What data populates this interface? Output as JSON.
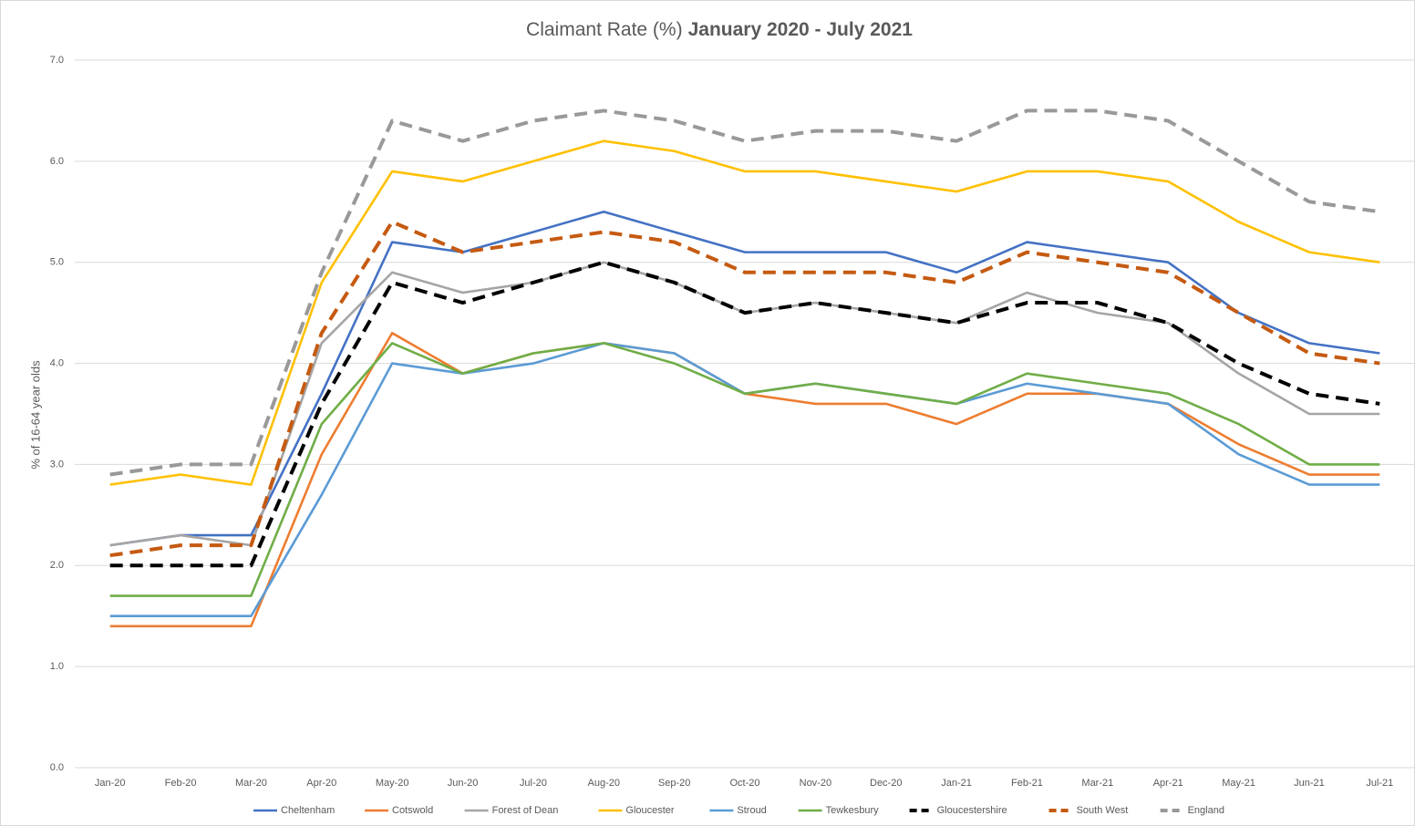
{
  "chart_data": {
    "type": "line",
    "title": [
      "Claimant Rate (%)",
      "January 2020 - July 2021"
    ],
    "y_label": "% of 16-64 year olds",
    "categories": [
      "Jan-20",
      "Feb-20",
      "Mar-20",
      "Apr-20",
      "May-20",
      "Jun-20",
      "Jul-20",
      "Aug-20",
      "Sep-20",
      "Oct-20",
      "Nov-20",
      "Dec-20",
      "Jan-21",
      "Feb-21",
      "Mar-21",
      "Apr-21",
      "May-21",
      "Jun-21",
      "Jul-21"
    ],
    "ylim": [
      0,
      7
    ],
    "yticks": [
      {
        "value": 0,
        "label": "0.0"
      },
      {
        "value": 1,
        "label": "1.0"
      },
      {
        "value": 2,
        "label": "2.0"
      },
      {
        "value": 3,
        "label": "3.0"
      },
      {
        "value": 4,
        "label": "4.0"
      },
      {
        "value": 5,
        "label": "5.0"
      },
      {
        "value": 6,
        "label": "6.0"
      },
      {
        "value": 7,
        "label": "7.0"
      }
    ],
    "grid": true,
    "legend": "bottom",
    "series": [
      {
        "name": "Cheltenham",
        "color": "#4472c4",
        "dash": false,
        "values": [
          2.2,
          2.3,
          2.3,
          3.7,
          5.2,
          5.1,
          5.3,
          5.5,
          5.3,
          5.1,
          5.1,
          5.1,
          4.9,
          5.2,
          5.1,
          5.0,
          4.5,
          4.2,
          4.1
        ]
      },
      {
        "name": "Cotswold",
        "color": "#ed7d31",
        "dash": false,
        "values": [
          1.4,
          1.4,
          1.4,
          3.1,
          4.3,
          3.9,
          4.1,
          4.2,
          4.1,
          3.7,
          3.6,
          3.6,
          3.4,
          3.7,
          3.7,
          3.6,
          3.2,
          2.9,
          2.9
        ]
      },
      {
        "name": "Forest of Dean",
        "color": "#a5a5a5",
        "dash": false,
        "values": [
          2.2,
          2.3,
          2.2,
          4.2,
          4.9,
          4.7,
          4.8,
          5.0,
          4.8,
          4.5,
          4.6,
          4.5,
          4.4,
          4.7,
          4.5,
          4.4,
          3.9,
          3.5,
          3.5
        ]
      },
      {
        "name": "Gloucester",
        "color": "#ffc000",
        "dash": false,
        "values": [
          2.8,
          2.9,
          2.8,
          4.8,
          5.9,
          5.8,
          6.0,
          6.2,
          6.1,
          5.9,
          5.9,
          5.8,
          5.7,
          5.9,
          5.9,
          5.8,
          5.4,
          5.1,
          5.0
        ]
      },
      {
        "name": "Stroud",
        "color": "#5b9bd5",
        "dash": false,
        "values": [
          1.5,
          1.5,
          1.5,
          2.7,
          4.0,
          3.9,
          4.0,
          4.2,
          4.1,
          3.7,
          3.8,
          3.7,
          3.6,
          3.8,
          3.7,
          3.6,
          3.1,
          2.8,
          2.8
        ]
      },
      {
        "name": "Tewkesbury",
        "color": "#70ad47",
        "dash": false,
        "values": [
          1.7,
          1.7,
          1.7,
          3.4,
          4.2,
          3.9,
          4.1,
          4.2,
          4.0,
          3.7,
          3.8,
          3.7,
          3.6,
          3.9,
          3.8,
          3.7,
          3.4,
          3.0,
          3.0
        ]
      },
      {
        "name": "Gloucestershire",
        "color": "#000000",
        "dash": true,
        "values": [
          2.0,
          2.0,
          2.0,
          3.6,
          4.8,
          4.6,
          4.8,
          5.0,
          4.8,
          4.5,
          4.6,
          4.5,
          4.4,
          4.6,
          4.6,
          4.4,
          4.0,
          3.7,
          3.6
        ]
      },
      {
        "name": "South West",
        "color": "#c55a11",
        "dash": true,
        "values": [
          2.1,
          2.2,
          2.2,
          4.3,
          5.4,
          5.1,
          5.2,
          5.3,
          5.2,
          4.9,
          4.9,
          4.9,
          4.8,
          5.1,
          5.0,
          4.9,
          4.5,
          4.1,
          4.0
        ]
      },
      {
        "name": "England",
        "color": "#999999",
        "dash": true,
        "values": [
          2.9,
          3.0,
          3.0,
          4.9,
          6.4,
          6.2,
          6.4,
          6.5,
          6.4,
          6.2,
          6.3,
          6.3,
          6.2,
          6.5,
          6.5,
          6.4,
          6.0,
          5.6,
          5.5
        ]
      }
    ]
  }
}
